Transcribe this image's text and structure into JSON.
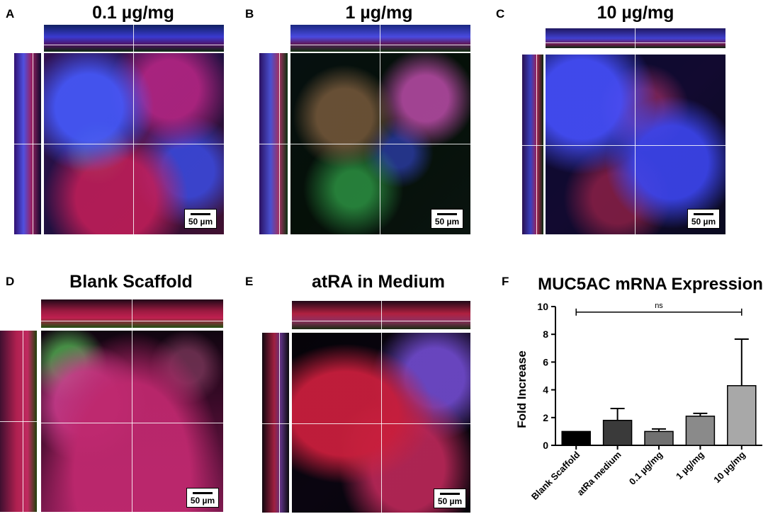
{
  "panels": {
    "A": {
      "letter": "A",
      "title": "0.1 µg/mg",
      "scale": "50 µm"
    },
    "B": {
      "letter": "B",
      "title": "1 µg/mg",
      "scale": "50 µm"
    },
    "C": {
      "letter": "C",
      "title": "10 µg/mg",
      "scale": "50 µm"
    },
    "D": {
      "letter": "D",
      "title": "Blank Scaffold",
      "scale": "50 µm"
    },
    "E": {
      "letter": "E",
      "title": "atRA in Medium",
      "scale": "50 µm"
    },
    "F": {
      "letter": "F"
    }
  },
  "stain_colors": {
    "nuclei": "#2a3cff",
    "membrane": "#e0203a",
    "marker": "#30e040",
    "background": "#000000"
  },
  "chart_data": {
    "type": "bar",
    "title": "MUC5AC mRNA Expression",
    "ylabel": "Fold  Increase",
    "xlabel": "",
    "categories": [
      "Blank Scaffold",
      "atRa medium",
      "0.1 µg/mg",
      "1 µg/mg",
      "10 µg/mg"
    ],
    "values": [
      1.0,
      1.8,
      1.0,
      2.1,
      4.3
    ],
    "errors": [
      0,
      0.85,
      0.18,
      0.2,
      3.35
    ],
    "colors": [
      "#000000",
      "#3a3a3a",
      "#707070",
      "#8a8a8a",
      "#a8a8a8"
    ],
    "ylim": [
      0,
      10
    ],
    "yticks": [
      "0",
      "2",
      "4",
      "6",
      "8",
      "10"
    ],
    "significance": {
      "label": "ns",
      "from": "Blank Scaffold",
      "to": "10 µg/mg"
    }
  }
}
